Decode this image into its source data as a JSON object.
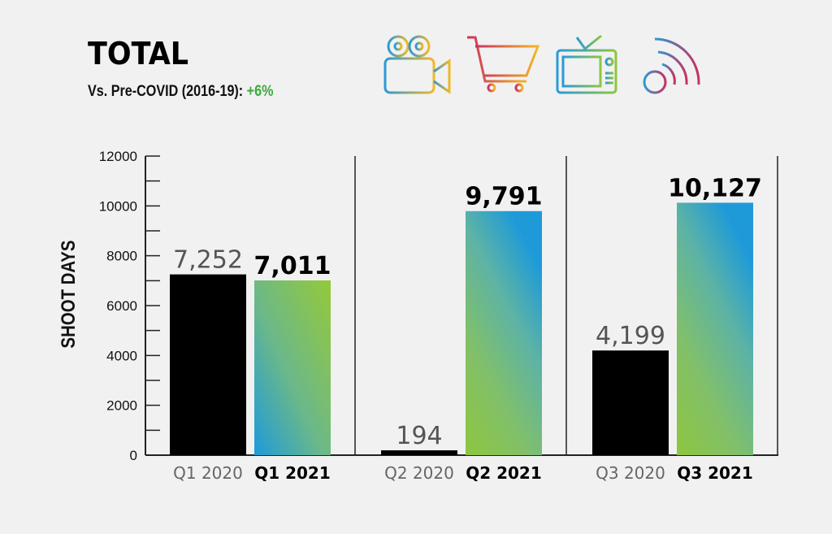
{
  "header": {
    "title": "TOTAL",
    "subtitle_label": "Vs. Pre-COVID (2016-19):",
    "subtitle_value": "+6%",
    "subtitle_value_color": "#3cab3c",
    "icons": [
      "movie-camera-icon",
      "shopping-cart-icon",
      "television-icon",
      "broadcast-signal-icon"
    ]
  },
  "chart_data": {
    "type": "bar",
    "title": "TOTAL",
    "ylabel": "SHOOT DAYS",
    "xlabel": "",
    "ylim": [
      0,
      12000
    ],
    "yticks": [
      0,
      2000,
      4000,
      6000,
      8000,
      10000,
      12000
    ],
    "grid": false,
    "categories": [
      "Q1 2020",
      "Q1 2021",
      "Q2 2020",
      "Q2 2021",
      "Q3 2020",
      "Q3 2021"
    ],
    "values": [
      7252,
      7011,
      194,
      9791,
      4199,
      10127
    ],
    "data_labels": [
      "7,252",
      "7,011",
      "194",
      "9,791",
      "4,199",
      "10,127"
    ],
    "colors": {
      "2020": "#000000",
      "2021_gradient": [
        "#2196d8",
        "#8dc63f"
      ]
    }
  }
}
